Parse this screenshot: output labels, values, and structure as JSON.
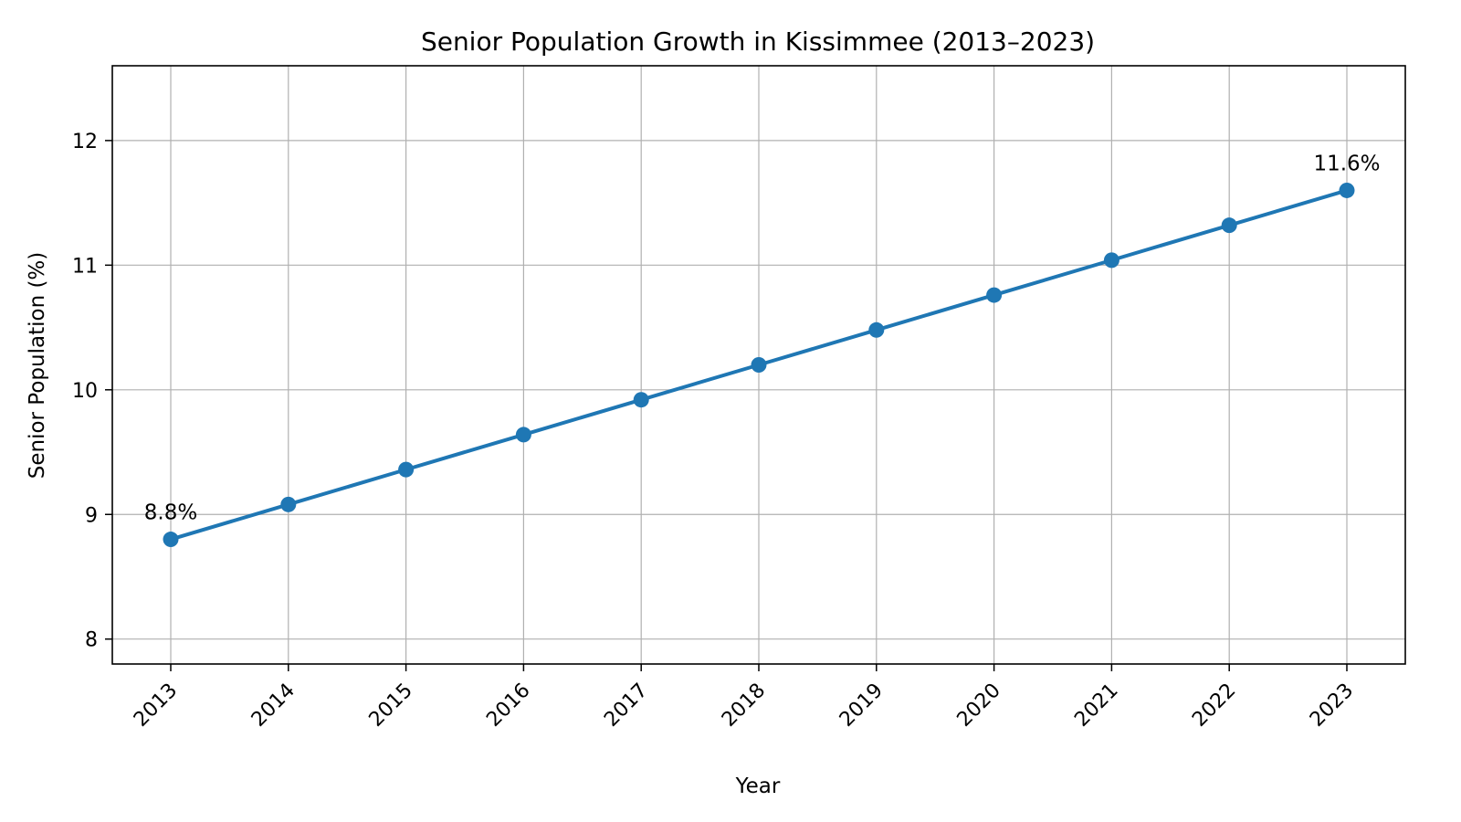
{
  "chart_data": {
    "type": "line",
    "title": "Senior Population Growth in Kissimmee (2013–2023)",
    "xlabel": "Year",
    "ylabel": "Senior Population (%)",
    "x": [
      "2013",
      "2014",
      "2015",
      "2016",
      "2017",
      "2018",
      "2019",
      "2020",
      "2021",
      "2022",
      "2023"
    ],
    "series": [
      {
        "values": [
          8.8,
          9.08,
          9.36,
          9.64,
          9.92,
          10.2,
          10.48,
          10.76,
          11.04,
          11.32,
          11.6
        ],
        "color": "#1f77b4",
        "marker": "circle"
      }
    ],
    "ylim": [
      7.8,
      12.6
    ],
    "yticks": [
      "8",
      "9",
      "10",
      "11",
      "12"
    ],
    "annotations": [
      {
        "x": "2013",
        "y": 8.8,
        "text": "8.8%"
      },
      {
        "x": "2023",
        "y": 11.6,
        "text": "11.6%"
      }
    ],
    "grid": true,
    "x_tick_rotation": 45
  }
}
